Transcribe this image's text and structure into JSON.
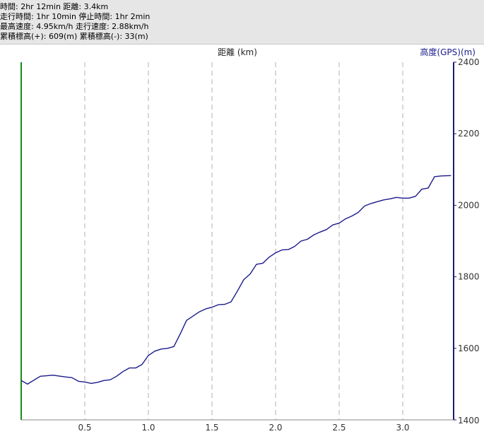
{
  "stats": {
    "line1": "時間: 2hr 12min 距離: 3.4km",
    "line2": "走行時間: 1hr 10min 停止時間: 1hr 2min",
    "line3": "最高速度: 4.95km/h 走行速度: 2.88km/h",
    "line4": "累積標高(+): 609(m) 累積標高(-): 33(m)"
  },
  "chart_data": {
    "type": "line",
    "title": "",
    "xlabel": "距離 (km)",
    "ylabel": "高度(GPS)(m)",
    "xlim": [
      0,
      3.4
    ],
    "ylim": [
      1400,
      2400
    ],
    "x_ticks": [
      "0.5",
      "1.0",
      "1.5",
      "2.0",
      "2.5",
      "3.0"
    ],
    "y_ticks": [
      "1600",
      "1800",
      "2000",
      "2200",
      "2400"
    ],
    "y_tick_bottom": "1400",
    "grid": "vertical-dashed",
    "colors": {
      "line": "#1a1a8c",
      "left_axis": "#1a8c1a",
      "right_axis": "#1a1a6e",
      "grid": "#b0b0b0",
      "label": "#1a1a8c"
    },
    "series": [
      {
        "x": [
          0.0,
          0.05,
          0.15,
          0.25,
          0.35,
          0.4,
          0.45,
          0.5,
          0.55,
          0.6,
          0.65,
          0.7,
          0.75,
          0.8,
          0.85,
          0.9,
          0.95,
          1.0,
          1.05,
          1.1,
          1.15,
          1.2,
          1.25,
          1.3,
          1.35,
          1.4,
          1.45,
          1.5,
          1.55,
          1.6,
          1.65,
          1.7,
          1.75,
          1.8,
          1.85,
          1.9,
          1.95,
          2.0,
          2.05,
          2.1,
          2.15,
          2.2,
          2.25,
          2.3,
          2.35,
          2.4,
          2.45,
          2.5,
          2.55,
          2.6,
          2.65,
          2.7,
          2.75,
          2.8,
          2.85,
          2.9,
          2.95,
          3.0,
          3.05,
          3.1,
          3.15,
          3.2,
          3.25,
          3.3,
          3.38
        ],
        "y": [
          1510,
          1500,
          1522,
          1525,
          1520,
          1518,
          1508,
          1506,
          1502,
          1505,
          1510,
          1512,
          1522,
          1535,
          1545,
          1545,
          1555,
          1580,
          1592,
          1598,
          1600,
          1605,
          1640,
          1678,
          1690,
          1702,
          1710,
          1715,
          1722,
          1723,
          1730,
          1760,
          1792,
          1808,
          1835,
          1838,
          1855,
          1867,
          1875,
          1876,
          1885,
          1900,
          1905,
          1917,
          1925,
          1932,
          1945,
          1950,
          1962,
          1970,
          1980,
          1998,
          2005,
          2010,
          2015,
          2018,
          2022,
          2020,
          2020,
          2025,
          2045,
          2048,
          2080,
          2082,
          2083
        ]
      }
    ]
  }
}
